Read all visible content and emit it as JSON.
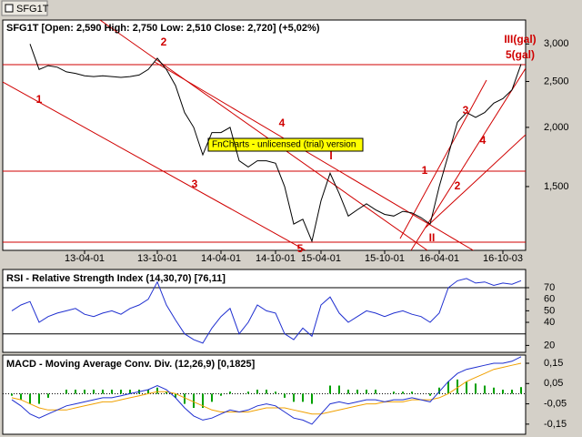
{
  "window_title": "SFG1T",
  "watermark": "FnCharts - unlicensed (trial) version",
  "annotations": [
    "1",
    "2",
    "3",
    "4",
    "5",
    "I",
    "II",
    "1",
    "2",
    "3",
    "4",
    "III(gal)",
    "5(gal)"
  ],
  "chart_data": [
    {
      "type": "line",
      "title": "SFG1T [Open: 2,590  High: 2,750  Low: 2,510  Close: 2,720]  (+5,02%)",
      "categories": [
        null,
        null,
        null,
        null,
        null,
        null,
        null,
        null,
        null,
        "13-04-01",
        null,
        null,
        null,
        null,
        null,
        null,
        null,
        "13-10-01",
        null,
        null,
        null,
        null,
        null,
        null,
        "14-04-01",
        null,
        null,
        null,
        null,
        null,
        "14-10-01",
        null,
        null,
        null,
        null,
        "15-04-01",
        null,
        null,
        null,
        null,
        null,
        null,
        "15-10-01",
        null,
        null,
        null,
        null,
        null,
        "16-04-01",
        null,
        null,
        null,
        null,
        null,
        null,
        "16-10-03",
        null,
        null
      ],
      "values": [
        null,
        null,
        null,
        3000,
        2650,
        2700,
        2680,
        2620,
        2600,
        2570,
        2560,
        2570,
        2560,
        2550,
        2560,
        2580,
        2650,
        2800,
        2650,
        2450,
        2150,
        2000,
        1750,
        1950,
        1950,
        2000,
        1700,
        1650,
        1700,
        1700,
        1680,
        1500,
        1250,
        1280,
        1150,
        1400,
        1600,
        1450,
        1300,
        1340,
        1380,
        1340,
        1310,
        1300,
        1330,
        1320,
        1290,
        1250,
        1500,
        1750,
        2050,
        2150,
        2100,
        2150,
        2250,
        2300,
        2400,
        2720
      ],
      "color": "#000000",
      "log_scale": true,
      "ylim": [
        1100,
        3370
      ],
      "yticks": [
        {
          "value": 3000,
          "label": "3,000"
        },
        {
          "value": 2500,
          "label": "2,500"
        },
        {
          "value": 2000,
          "label": "2,000"
        },
        {
          "value": 1500,
          "label": "1,500"
        }
      ]
    },
    {
      "type": "line",
      "title": "RSI - Relative Strength Index (14,30,70) [76,11]",
      "values": [
        null,
        50,
        55,
        58,
        40,
        45,
        48,
        50,
        52,
        47,
        45,
        48,
        50,
        47,
        52,
        55,
        60,
        75,
        55,
        42,
        30,
        25,
        22,
        35,
        45,
        52,
        30,
        40,
        55,
        50,
        48,
        30,
        25,
        35,
        28,
        55,
        62,
        48,
        40,
        45,
        50,
        48,
        45,
        48,
        50,
        47,
        45,
        40,
        48,
        70,
        76,
        78,
        74,
        75,
        72,
        74,
        73,
        76.11
      ],
      "color": "#1f2fd0",
      "levels": [
        30,
        70
      ],
      "ylim": [
        14,
        85
      ],
      "yticks": [
        70,
        60,
        50,
        40,
        20
      ]
    },
    {
      "type": "line",
      "title": "MACD - Moving Average Conv. Div. (12,26,9) [0,1825]",
      "series": [
        {
          "type": "bar",
          "color": "#00a000",
          "values": [
            null,
            -0.01,
            -0.03,
            -0.05,
            -0.05,
            -0.02,
            0,
            0.02,
            0.02,
            0.02,
            0.02,
            0.02,
            0.02,
            0.02,
            0.02,
            0.02,
            0.02,
            0.03,
            0.01,
            -0.02,
            -0.05,
            -0.07,
            -0.07,
            -0.04,
            -0.01,
            0.01,
            0,
            0.01,
            0.02,
            0.02,
            0.01,
            -0.02,
            -0.04,
            -0.04,
            -0.05,
            0,
            0.04,
            0.04,
            0.02,
            0.02,
            0.02,
            0.02,
            0,
            0.01,
            0.01,
            0.01,
            0,
            -0.01,
            0.03,
            0.06,
            0.07,
            0.06,
            0.05,
            0.04,
            0.03,
            0.02,
            0.02,
            0.0325
          ]
        },
        {
          "type": "line",
          "color": "#f0a000",
          "values": [
            null,
            -0.02,
            -0.03,
            -0.05,
            -0.07,
            -0.08,
            -0.08,
            -0.08,
            -0.07,
            -0.06,
            -0.05,
            -0.04,
            -0.04,
            -0.03,
            -0.02,
            -0.01,
            0,
            0.01,
            0.01,
            0,
            -0.02,
            -0.04,
            -0.06,
            -0.08,
            -0.09,
            -0.09,
            -0.09,
            -0.09,
            -0.08,
            -0.07,
            -0.07,
            -0.07,
            -0.08,
            -0.09,
            -0.1,
            -0.1,
            -0.09,
            -0.08,
            -0.07,
            -0.06,
            -0.05,
            -0.05,
            -0.04,
            -0.04,
            -0.04,
            -0.03,
            -0.03,
            -0.03,
            -0.02,
            0,
            0.03,
            0.06,
            0.08,
            0.1,
            0.12,
            0.13,
            0.14,
            0.15
          ]
        },
        {
          "type": "line",
          "color": "#1f2fd0",
          "values": [
            null,
            -0.03,
            -0.06,
            -0.1,
            -0.12,
            -0.1,
            -0.08,
            -0.06,
            -0.05,
            -0.04,
            -0.03,
            -0.02,
            -0.02,
            -0.01,
            0,
            0.01,
            0.02,
            0.04,
            0.02,
            -0.02,
            -0.07,
            -0.11,
            -0.13,
            -0.12,
            -0.1,
            -0.08,
            -0.09,
            -0.08,
            -0.06,
            -0.05,
            -0.06,
            -0.09,
            -0.12,
            -0.13,
            -0.15,
            -0.1,
            -0.05,
            -0.04,
            -0.05,
            -0.04,
            -0.03,
            -0.03,
            -0.04,
            -0.03,
            -0.03,
            -0.02,
            -0.03,
            -0.04,
            0.01,
            0.06,
            0.1,
            0.12,
            0.13,
            0.14,
            0.15,
            0.15,
            0.16,
            0.1825
          ]
        }
      ],
      "ylim": [
        -0.2,
        0.186
      ],
      "yticks": [
        {
          "value": 0.15,
          "label": "0,15"
        },
        {
          "value": 0.05,
          "label": "0,05"
        },
        {
          "value": -0.05,
          "label": "-0,05"
        },
        {
          "value": -0.15,
          "label": "-0,15"
        }
      ]
    }
  ]
}
